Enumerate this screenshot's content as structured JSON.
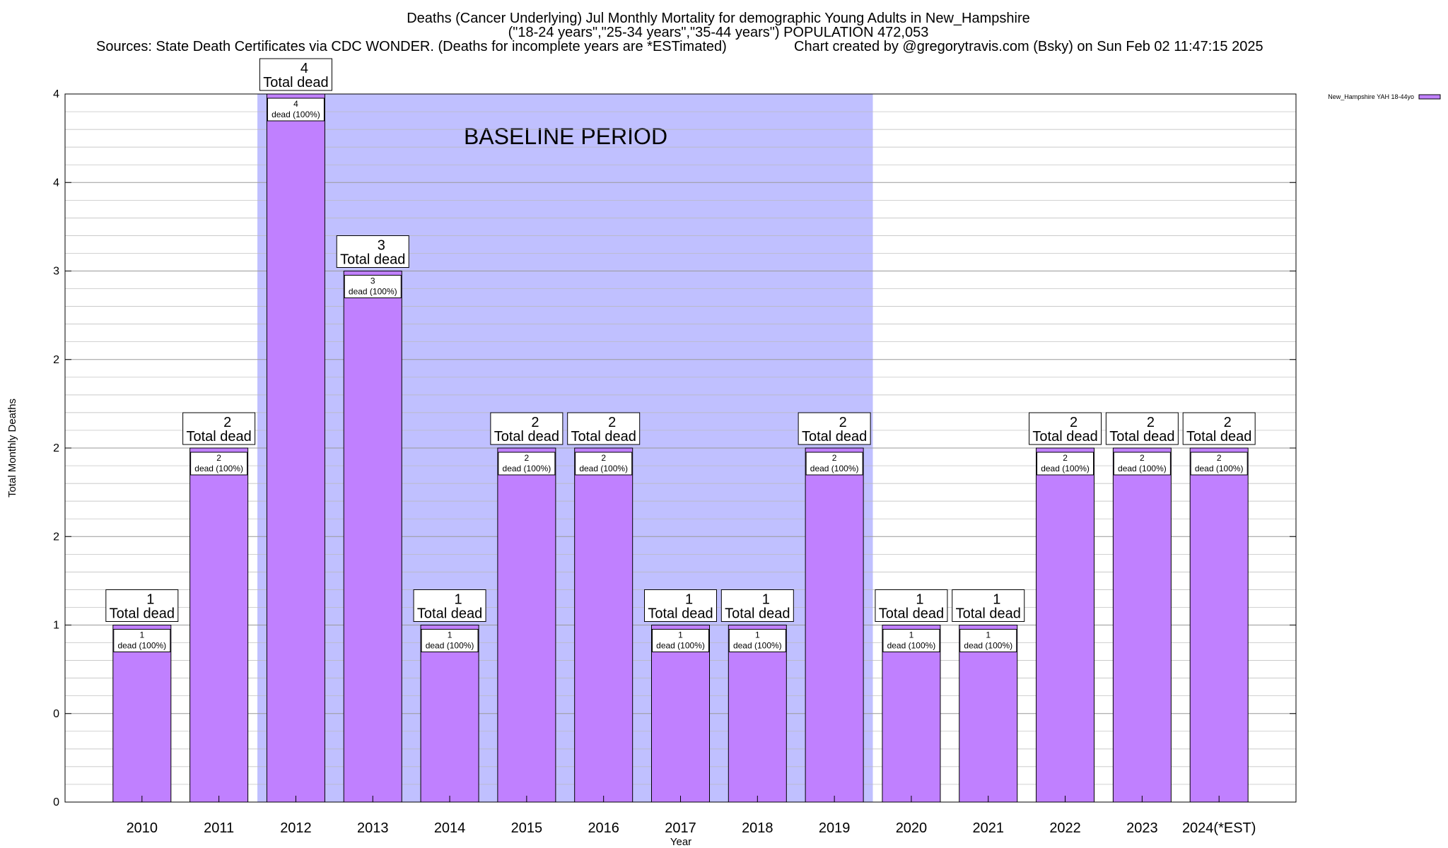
{
  "chart_data": {
    "type": "bar",
    "title_lines": [
      "Deaths (Cancer Underlying) Jul Monthly Mortality for demographic Young Adults in New_Hampshire",
      "(\"18-24 years\",\"25-34 years\",\"35-44 years\") POPULATION 472,053"
    ],
    "sources_text": "Sources: State Death Certificates via CDC WONDER. (Deaths for incomplete years are *ESTimated)",
    "credit_text": "Chart created by @gregorytravis.com (Bsky) on Sun Feb 02 11:47:15 2025",
    "xlabel": "Year",
    "ylabel": "Total Monthly Deaths",
    "categories": [
      "2010",
      "2011",
      "2012",
      "2013",
      "2014",
      "2015",
      "2016",
      "2017",
      "2018",
      "2019",
      "2020",
      "2021",
      "2022",
      "2023",
      "2024(*EST)"
    ],
    "values": [
      1,
      2,
      4,
      3,
      1,
      2,
      2,
      1,
      1,
      2,
      1,
      1,
      2,
      2,
      2
    ],
    "ylim": [
      0,
      4
    ],
    "y_tick_values": [
      0,
      0.5,
      1,
      1.5,
      2,
      2.5,
      3,
      3.5,
      4
    ],
    "y_tick_labels": [
      "0",
      "0",
      "1",
      "2",
      "2",
      "2",
      "3",
      "4",
      "4"
    ],
    "series": [
      {
        "name": "New_Hampshire YAH 18-44yo",
        "values": [
          1,
          2,
          4,
          3,
          1,
          2,
          2,
          1,
          1,
          2,
          1,
          1,
          2,
          2,
          2
        ]
      }
    ],
    "legend_position": "top-right",
    "grid": true,
    "baseline_band": {
      "label": "BASELINE PERIOD",
      "start": "2012",
      "end": "2019"
    },
    "annotation_total_suffix": "Total dead",
    "annotation_bar_suffix": "dead (100%)",
    "colors": {
      "bar": "#c080ff",
      "bar_stroke": "#000000",
      "baseline_band": "#c0c0ff",
      "legend_swatch": "#c080ff"
    }
  }
}
